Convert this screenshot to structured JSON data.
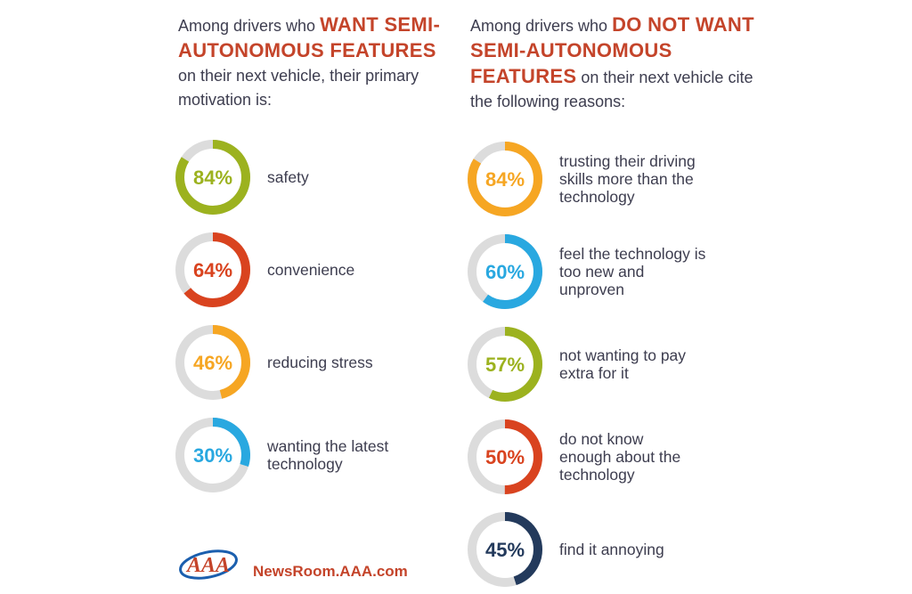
{
  "left": {
    "heading_pre": "Among drivers who ",
    "heading_em": "WANT SEMI-AUTONOMOUS FEATURES",
    "heading_post": " on their next vehicle, their primary motivation is:"
  },
  "right": {
    "heading_pre": "Among drivers who ",
    "heading_em": "DO NOT WANT SEMI-AUTONOMOUS FEATURES",
    "heading_post": " on their next vehicle cite the following reasons:"
  },
  "chart_data": [
    {
      "type": "donut",
      "title": "Among drivers who WANT SEMI-AUTONOMOUS FEATURES on their next vehicle, their primary motivation is:",
      "categories": [
        "safety",
        "convenience",
        "reducing stress",
        "wanting the latest technology"
      ],
      "values": [
        84,
        64,
        46,
        30
      ],
      "labels": [
        "84%",
        "64%",
        "46%",
        "30%"
      ],
      "colors": [
        "#9cb21f",
        "#d9431f",
        "#f6a623",
        "#29a8e0"
      ],
      "track_color": "#dcdcdc"
    },
    {
      "type": "donut",
      "title": "Among drivers who DO NOT WANT SEMI-AUTONOMOUS FEATURES on their next vehicle cite the following reasons:",
      "categories": [
        "trusting their driving skills more than the technology",
        "feel the technology is too new and unproven",
        "not wanting to pay extra for it",
        "do not know enough about the technology",
        "find it annoying"
      ],
      "values": [
        84,
        60,
        57,
        50,
        45
      ],
      "labels": [
        "84%",
        "60%",
        "57%",
        "50%",
        "45%"
      ],
      "colors": [
        "#f6a623",
        "#29a8e0",
        "#9cb21f",
        "#d9431f",
        "#233a5c"
      ],
      "track_color": "#dcdcdc"
    }
  ],
  "display_labels": {
    "left": [
      "safety",
      "convenience",
      "reducing stress",
      "wanting the latest\ntechnology"
    ],
    "right": [
      "trusting their driving\nskills more than the\ntechnology",
      "feel the technology is\ntoo new and\nunproven",
      "not wanting to pay\nextra for it",
      "do not know\nenough about the\ntechnology",
      "find it annoying"
    ]
  },
  "footer": {
    "logo_text": "AAA",
    "site": "NewsRoom.AAA.com"
  },
  "colors": {
    "accent": "#c4442a",
    "text": "#3d3d4f",
    "logo_blue": "#1b5fae"
  }
}
